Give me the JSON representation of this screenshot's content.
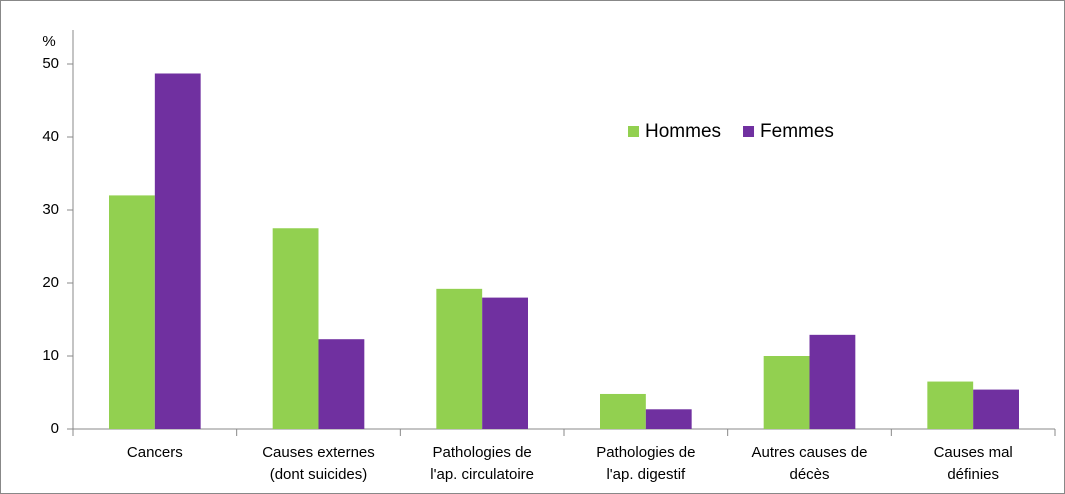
{
  "chart_data": {
    "type": "bar",
    "y_label": "%",
    "categories": [
      [
        "Cancers"
      ],
      [
        "Causes externes",
        "(dont suicides)"
      ],
      [
        "Pathologies de",
        "l'ap. circulatoire"
      ],
      [
        "Pathologies de",
        "l'ap. digestif"
      ],
      [
        "Autres causes de",
        "décès"
      ],
      [
        "Causes mal",
        "définies"
      ]
    ],
    "series": [
      {
        "name": "Hommes",
        "color": "#92d050",
        "values": [
          32,
          27.5,
          19.2,
          4.8,
          10,
          6.5
        ]
      },
      {
        "name": "Femmes",
        "color": "#7030a0",
        "values": [
          48.7,
          12.3,
          18,
          2.7,
          12.9,
          5.4
        ]
      }
    ],
    "ylim": [
      0,
      50
    ],
    "yticks": [
      0,
      10,
      20,
      30,
      40,
      50
    ],
    "legend": "top-right"
  }
}
